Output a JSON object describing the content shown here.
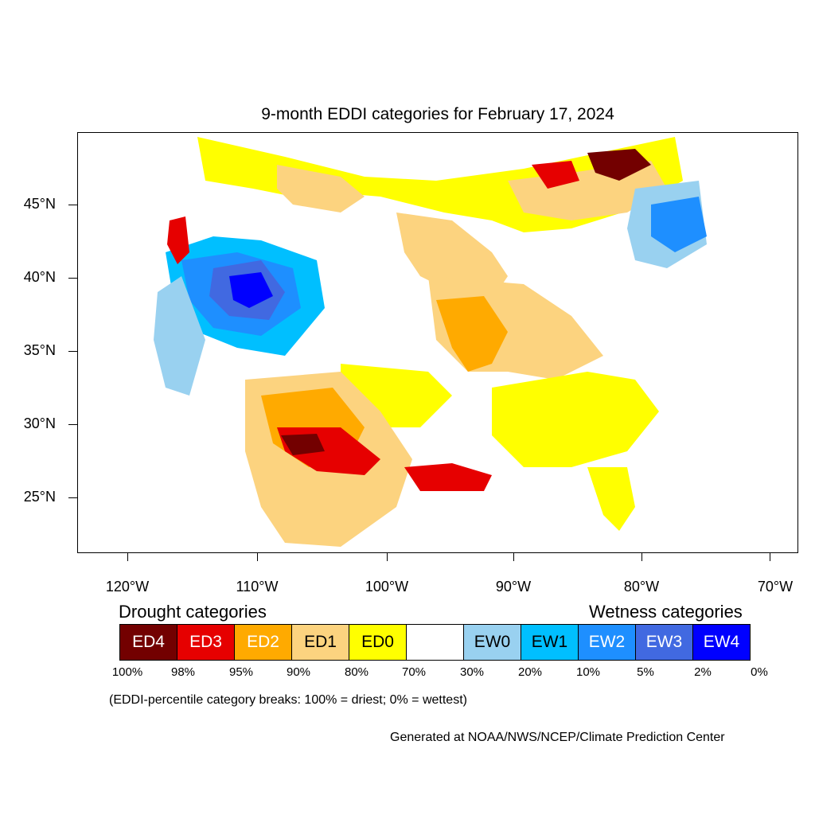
{
  "title": "9-month EDDI categories for February 17, 2024",
  "lat_labels": [
    "45°N",
    "40°N",
    "35°N",
    "30°N",
    "25°N"
  ],
  "lon_labels": [
    "120°W",
    "110°W",
    "100°W",
    "90°W",
    "80°W",
    "70°W"
  ],
  "legend": {
    "drought_title": "Drought categories",
    "wetness_title": "Wetness categories",
    "categories": [
      {
        "label": "ED4",
        "color": "#730000",
        "text_color": "#ffffff"
      },
      {
        "label": "ED3",
        "color": "#e60000",
        "text_color": "#ffffff"
      },
      {
        "label": "ED2",
        "color": "#ffaa00",
        "text_color": "#ffffff"
      },
      {
        "label": "ED1",
        "color": "#fcd37f",
        "text_color": "#000000"
      },
      {
        "label": "ED0",
        "color": "#ffff00",
        "text_color": "#000000"
      },
      {
        "label": "",
        "color": "#ffffff",
        "text_color": "#000000"
      },
      {
        "label": "EW0",
        "color": "#99d1f0",
        "text_color": "#000000"
      },
      {
        "label": "EW1",
        "color": "#00bfff",
        "text_color": "#000000"
      },
      {
        "label": "EW2",
        "color": "#1e8fff",
        "text_color": "#ffffff"
      },
      {
        "label": "EW3",
        "color": "#4169e1",
        "text_color": "#ffffff"
      },
      {
        "label": "EW4",
        "color": "#0000ff",
        "text_color": "#ffffff"
      }
    ],
    "percentiles": [
      "100%",
      "98%",
      "95%",
      "90%",
      "80%",
      "70%",
      "30%",
      "20%",
      "10%",
      "5%",
      "2%",
      "0%"
    ]
  },
  "note": "(EDDI-percentile category breaks: 100% = driest; 0% = wettest)",
  "credit": "Generated at NOAA/NWS/NCEP/Climate Prediction Center"
}
